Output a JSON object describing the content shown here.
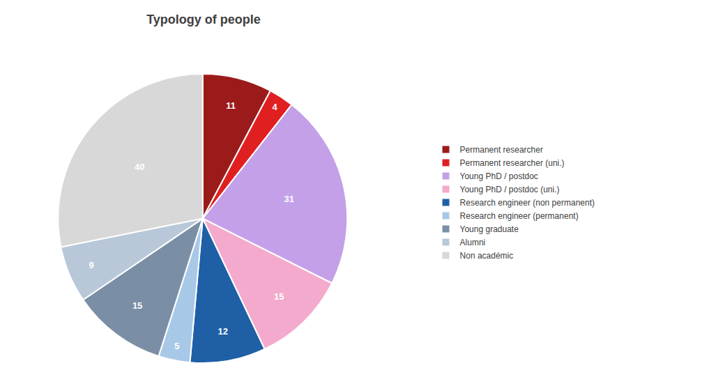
{
  "chart_data": {
    "type": "pie",
    "title": "Typology of people",
    "categories": [
      "Permanent researcher",
      "Permanent researcher (uni.)",
      "Young PhD / postdoc",
      "Young PhD / postdoc (uni.)",
      "Research engineer (non permanent)",
      "Research engineer (permanent)",
      "Young graduate",
      "Alumni",
      "Non académic"
    ],
    "values": [
      11,
      4,
      31,
      15,
      12,
      5,
      15,
      9,
      40
    ],
    "colors": [
      "#9B1B1B",
      "#E02020",
      "#C4A0E8",
      "#F4AACC",
      "#1F5FA6",
      "#A8C8E8",
      "#7A8FA6",
      "#B8C8D8",
      "#D8D8D8"
    ],
    "data_labels": true,
    "legend": "right"
  }
}
